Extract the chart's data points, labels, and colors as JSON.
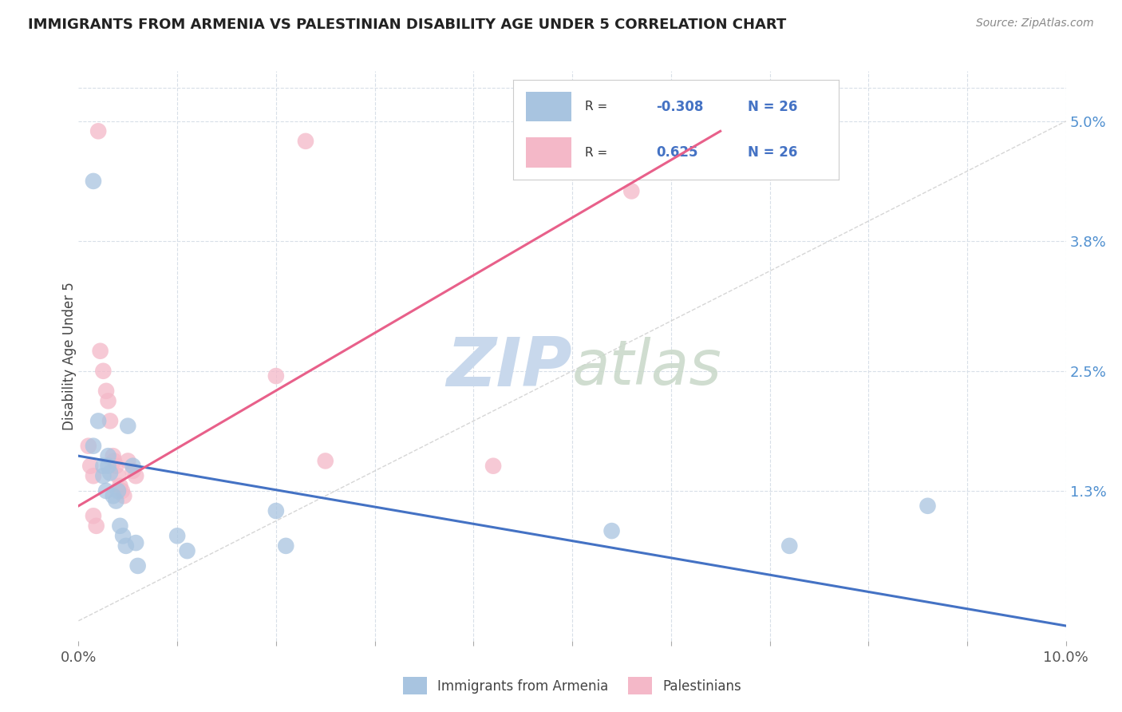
{
  "title": "IMMIGRANTS FROM ARMENIA VS PALESTINIAN DISABILITY AGE UNDER 5 CORRELATION CHART",
  "source": "Source: ZipAtlas.com",
  "ylabel": "Disability Age Under 5",
  "legend_label_blue": "Immigrants from Armenia",
  "legend_label_pink": "Palestinians",
  "r_blue": "-0.308",
  "n_blue": "26",
  "r_pink": "0.625",
  "n_pink": "26",
  "xlim": [
    0.0,
    0.1
  ],
  "ylim": [
    -0.002,
    0.055
  ],
  "yticks_right": [
    0.013,
    0.025,
    0.038,
    0.05
  ],
  "yticklabels_right": [
    "1.3%",
    "2.5%",
    "3.8%",
    "5.0%"
  ],
  "xticks": [
    0.0,
    0.01,
    0.02,
    0.03,
    0.04,
    0.05,
    0.06,
    0.07,
    0.08,
    0.09,
    0.1
  ],
  "blue_scatter": [
    [
      0.0015,
      0.044
    ],
    [
      0.0015,
      0.0175
    ],
    [
      0.002,
      0.02
    ],
    [
      0.0025,
      0.0155
    ],
    [
      0.0025,
      0.0145
    ],
    [
      0.0028,
      0.013
    ],
    [
      0.003,
      0.0165
    ],
    [
      0.003,
      0.0155
    ],
    [
      0.0032,
      0.0148
    ],
    [
      0.0035,
      0.0125
    ],
    [
      0.0038,
      0.012
    ],
    [
      0.004,
      0.013
    ],
    [
      0.0042,
      0.0095
    ],
    [
      0.0045,
      0.0085
    ],
    [
      0.0048,
      0.0075
    ],
    [
      0.005,
      0.0195
    ],
    [
      0.0055,
      0.0155
    ],
    [
      0.0058,
      0.0078
    ],
    [
      0.006,
      0.0055
    ],
    [
      0.01,
      0.0085
    ],
    [
      0.011,
      0.007
    ],
    [
      0.02,
      0.011
    ],
    [
      0.021,
      0.0075
    ],
    [
      0.054,
      0.009
    ],
    [
      0.072,
      0.0075
    ],
    [
      0.086,
      0.0115
    ]
  ],
  "pink_scatter": [
    [
      0.001,
      0.0175
    ],
    [
      0.0012,
      0.0155
    ],
    [
      0.0015,
      0.0145
    ],
    [
      0.0015,
      0.0105
    ],
    [
      0.0018,
      0.0095
    ],
    [
      0.002,
      0.049
    ],
    [
      0.0022,
      0.027
    ],
    [
      0.0025,
      0.025
    ],
    [
      0.0028,
      0.023
    ],
    [
      0.003,
      0.022
    ],
    [
      0.0032,
      0.02
    ],
    [
      0.0035,
      0.0165
    ],
    [
      0.0036,
      0.016
    ],
    [
      0.0038,
      0.0155
    ],
    [
      0.004,
      0.0145
    ],
    [
      0.0042,
      0.0135
    ],
    [
      0.0044,
      0.013
    ],
    [
      0.0046,
      0.0125
    ],
    [
      0.005,
      0.016
    ],
    [
      0.0055,
      0.015
    ],
    [
      0.0058,
      0.0145
    ],
    [
      0.02,
      0.0245
    ],
    [
      0.023,
      0.048
    ],
    [
      0.025,
      0.016
    ],
    [
      0.042,
      0.0155
    ],
    [
      0.056,
      0.043
    ]
  ],
  "blue_color": "#a8c4e0",
  "pink_color": "#f4b8c8",
  "blue_line_color": "#4472c4",
  "pink_line_color": "#e8608a",
  "ref_line_color": "#cccccc",
  "watermark_color": "#d0dce8",
  "background_color": "#ffffff",
  "grid_color": "#d8dfe8",
  "title_color": "#222222",
  "right_axis_color": "#5090d0",
  "blue_line": [
    [
      0.0,
      0.0165
    ],
    [
      0.1,
      -0.0005
    ]
  ],
  "pink_line": [
    [
      0.0,
      0.0115
    ],
    [
      0.065,
      0.049
    ]
  ]
}
